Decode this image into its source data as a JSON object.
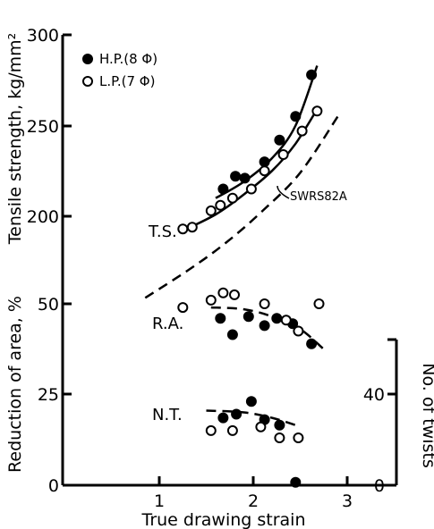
{
  "chart_data": {
    "type": "scatter",
    "xlabel": "True drawing strain",
    "xlim": [
      0,
      3.5
    ],
    "x_ticks": [
      "1",
      "2",
      "3"
    ],
    "panels": {
      "tensile_strength": {
        "ylabel": "Tensile strength, kg/mm²",
        "ylim": [
          175,
          300
        ],
        "y_ticks": [
          "300",
          "250",
          "200"
        ],
        "series": [
          {
            "name": "H.P.(8 Φ)",
            "marker": "filled-circle",
            "x": [
              1.68,
              1.81,
              1.91,
              2.12,
              2.28,
              2.45,
              2.62
            ],
            "y": [
              215,
              222,
              221,
              230,
              242,
              255,
              278
            ]
          },
          {
            "name": "L.P.(7 Φ)",
            "marker": "open-circle",
            "x": [
              1.25,
              1.35,
              1.55,
              1.65,
              1.78,
              1.98,
              2.12,
              2.32,
              2.52,
              2.68
            ],
            "y": [
              193,
              194,
              203,
              206,
              210,
              215,
              225,
              234,
              247,
              258
            ]
          }
        ],
        "curves": [
          {
            "label": "T.S.",
            "style": "solid",
            "x": [
              1.25,
              1.6,
              1.9,
              2.2,
              2.45,
              2.68
            ],
            "y": [
              192,
              201,
              212,
              225,
              240,
              259
            ]
          },
          {
            "label": "",
            "style": "solid",
            "x": [
              1.6,
              1.9,
              2.2,
              2.45,
              2.68
            ],
            "y": [
              210,
              219,
              232,
              250,
              283
            ]
          },
          {
            "label": "SWRS82A",
            "style": "dashed",
            "x": [
              0.85,
              1.3,
              1.7,
              2.1,
              2.5,
              2.9
            ],
            "y": [
              155,
              170,
              185,
              203,
              224,
              255
            ]
          }
        ]
      },
      "reduction_of_area": {
        "label": "R.A.",
        "ylabel": "Reduction of area, %",
        "ylim": [
          0,
          55
        ],
        "y_ticks": [
          "50",
          "25",
          "0"
        ],
        "series": [
          {
            "marker": "filled-circle",
            "x": [
              1.65,
              1.78,
              1.95,
              2.12,
              2.25,
              2.42,
              2.62
            ],
            "y": [
              46,
              41.5,
              46.5,
              44,
              46,
              44.5,
              39
            ]
          },
          {
            "marker": "open-circle",
            "x": [
              1.25,
              1.55,
              1.68,
              1.8,
              2.12,
              2.35,
              2.48,
              2.7
            ],
            "y": [
              49,
              51,
              53,
              52.5,
              50,
              45.5,
              42.5,
              50
            ]
          }
        ],
        "curves": [
          {
            "style": "dashed",
            "x": [
              1.55,
              1.9,
              2.2,
              2.5,
              2.75
            ],
            "y": [
              49,
              48.5,
              46.5,
              43,
              37.5
            ]
          }
        ]
      },
      "number_of_twists": {
        "label": "N.T.",
        "ylabel": "No. of twists",
        "ylim": [
          0,
          55
        ],
        "y_ticks": [
          "40",
          "0"
        ],
        "series": [
          {
            "marker": "filled-circle",
            "x": [
              1.68,
              1.82,
              1.98,
              2.12,
              2.28,
              2.45
            ],
            "y": [
              18.5,
              19.5,
              23,
              18,
              16.5,
              0.8
            ]
          },
          {
            "marker": "open-circle",
            "x": [
              1.55,
              1.78,
              2.08,
              2.28,
              2.48
            ],
            "y": [
              15,
              15,
              16,
              13,
              13
            ]
          }
        ],
        "curves": [
          {
            "style": "dashed",
            "x": [
              1.5,
              1.9,
              2.2,
              2.45
            ],
            "y": [
              20.5,
              20,
              18.5,
              16.5
            ]
          }
        ]
      }
    },
    "annotations": [
      "T.S.",
      "R.A.",
      "N.T.",
      "SWRS82A"
    ],
    "legend_position": "top-left",
    "grid": false
  }
}
